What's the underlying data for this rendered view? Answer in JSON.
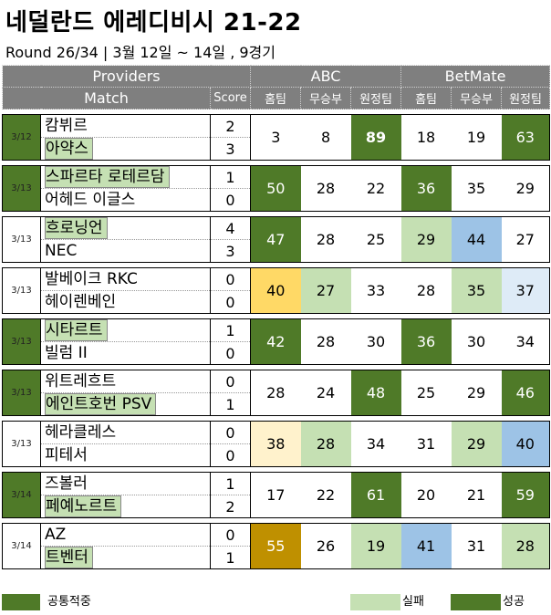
{
  "title": "네덜란드 에레디비시 21-22",
  "subtitle": "Round 26/34 | 3월 12일 ~ 14일 , 9경기",
  "header": {
    "providers": "Providers",
    "abc": "ABC",
    "betmate": "BetMate",
    "match": "Match",
    "score": "Score",
    "home": "홈팀",
    "draw": "무승부",
    "away": "원정팀"
  },
  "matches": [
    {
      "date": "3/12",
      "date_hit": true,
      "home": "캄뷔르",
      "away": "아약스",
      "home_win": false,
      "away_win": true,
      "home_score": "2",
      "away_score": "3",
      "abc": [
        "3",
        "8",
        "89"
      ],
      "betmate": [
        "18",
        "19",
        "63"
      ]
    },
    {
      "date": "3/13",
      "date_hit": true,
      "home": "스파르타 로테르담",
      "away": "어헤드 이글스",
      "home_win": true,
      "away_win": false,
      "home_score": "1",
      "away_score": "0",
      "abc": [
        "50",
        "28",
        "22"
      ],
      "betmate": [
        "36",
        "35",
        "29"
      ]
    },
    {
      "date": "3/13",
      "date_hit": false,
      "home": "흐로닝언",
      "away": "NEC",
      "home_win": true,
      "away_win": false,
      "home_score": "4",
      "away_score": "3",
      "abc": [
        "47",
        "28",
        "25"
      ],
      "betmate": [
        "29",
        "44",
        "27"
      ]
    },
    {
      "date": "3/13",
      "date_hit": false,
      "home": "발베이크 RKC",
      "away": "헤이렌베인",
      "home_win": false,
      "away_win": false,
      "home_score": "0",
      "away_score": "0",
      "abc": [
        "40",
        "27",
        "33"
      ],
      "betmate": [
        "28",
        "35",
        "37"
      ]
    },
    {
      "date": "3/13",
      "date_hit": true,
      "home": "시타르트",
      "away": "빌럼 II",
      "home_win": true,
      "away_win": false,
      "home_score": "1",
      "away_score": "0",
      "abc": [
        "42",
        "28",
        "30"
      ],
      "betmate": [
        "36",
        "30",
        "34"
      ]
    },
    {
      "date": "3/13",
      "date_hit": true,
      "home": "위트레흐트",
      "away": "에인트호번 PSV",
      "home_win": false,
      "away_win": true,
      "home_score": "0",
      "away_score": "1",
      "abc": [
        "28",
        "24",
        "48"
      ],
      "betmate": [
        "25",
        "29",
        "46"
      ]
    },
    {
      "date": "3/13",
      "date_hit": false,
      "home": "헤라클레스",
      "away": "피테서",
      "home_win": false,
      "away_win": false,
      "home_score": "0",
      "away_score": "0",
      "abc": [
        "38",
        "28",
        "34"
      ],
      "betmate": [
        "31",
        "29",
        "40"
      ]
    },
    {
      "date": "3/14",
      "date_hit": true,
      "home": "즈볼러",
      "away": "페예노르트",
      "home_win": false,
      "away_win": true,
      "home_score": "1",
      "away_score": "2",
      "abc": [
        "17",
        "22",
        "61"
      ],
      "betmate": [
        "20",
        "21",
        "59"
      ]
    },
    {
      "date": "3/14",
      "date_hit": false,
      "home": "AZ",
      "away": "트벤터",
      "home_win": false,
      "away_win": true,
      "home_score": "0",
      "away_score": "1",
      "abc": [
        "55",
        "26",
        "19"
      ],
      "betmate": [
        "41",
        "31",
        "28"
      ]
    }
  ],
  "cell_colors": [
    {
      "abc": [
        "",
        "",
        "dg"
      ],
      "betmate": [
        "",
        "",
        "dg"
      ]
    },
    {
      "abc": [
        "dg",
        "",
        ""
      ],
      "betmate": [
        "dg",
        "",
        ""
      ]
    },
    {
      "abc": [
        "dg",
        "",
        ""
      ],
      "betmate": [
        "lg",
        "bl",
        ""
      ]
    },
    {
      "abc": [
        "yl",
        "lg",
        ""
      ],
      "betmate": [
        "",
        "lg",
        "lbl"
      ]
    },
    {
      "abc": [
        "dg",
        "",
        ""
      ],
      "betmate": [
        "dg",
        "",
        ""
      ]
    },
    {
      "abc": [
        "",
        "",
        "dg"
      ],
      "betmate": [
        "",
        "",
        "dg"
      ]
    },
    {
      "abc": [
        "lyl",
        "lg",
        ""
      ],
      "betmate": [
        "",
        "lg",
        "bl"
      ]
    },
    {
      "abc": [
        "",
        "",
        "dg"
      ],
      "betmate": [
        "",
        "",
        "dg"
      ]
    },
    {
      "abc": [
        "gd",
        "",
        "lg"
      ],
      "betmate": [
        "bl",
        "",
        "lg"
      ]
    }
  ],
  "legend": {
    "common": "공통적중",
    "fail": "실패",
    "success": "성공"
  },
  "colors": {
    "dark_green": "#4f7a28",
    "light_green": "#c5e0b3",
    "blue": "#9dc3e6",
    "light_blue": "#deebf7",
    "yellow": "#ffd966",
    "light_yellow": "#fff2cc",
    "gold": "#bf9000",
    "header_gray": "#7f7f7f"
  }
}
